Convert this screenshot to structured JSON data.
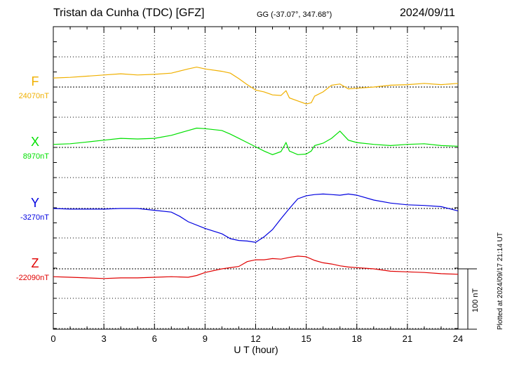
{
  "header": {
    "title": "Tristan da Cunha (TDC)  [GFZ]",
    "coords": "GG (-37.07°, 347.68°)",
    "date": "2024/09/11"
  },
  "plotted_note": "Plotted at 2024/09/17 21:14 UT",
  "colors": {
    "F": "#f0b000",
    "X": "#00e000",
    "Y": "#0000e0",
    "Z": "#e00000",
    "axis": "#000000",
    "grid": "#000000"
  },
  "chart_data": {
    "type": "line",
    "xlabel": "U T (hour)",
    "xlim": [
      0,
      24
    ],
    "xticks": [
      0,
      3,
      6,
      9,
      12,
      15,
      18,
      21,
      24
    ],
    "scale_bar": {
      "label": "100 nT",
      "value_nT": 100
    },
    "series": [
      {
        "name": "F",
        "baseline_label": "24070nT",
        "baseline_nT": 24070,
        "color": "#f0b000",
        "x": [
          0,
          1,
          2,
          3,
          4,
          5,
          6,
          7,
          8,
          8.5,
          9,
          10,
          10.5,
          11,
          11.5,
          12,
          12.5,
          13,
          13.5,
          13.8,
          14,
          14.5,
          15,
          15.3,
          15.5,
          16,
          16.5,
          17,
          17.5,
          18,
          19,
          20,
          21,
          22,
          23,
          24
        ],
        "values": [
          15,
          16,
          18,
          20,
          22,
          20,
          21,
          23,
          30,
          33,
          30,
          26,
          23,
          14,
          4,
          -5,
          -8,
          -13,
          -14,
          -6,
          -18,
          -23,
          -28,
          -26,
          -15,
          -8,
          3,
          5,
          -3,
          -2,
          0,
          3,
          4,
          6,
          4,
          6
        ]
      },
      {
        "name": "X",
        "baseline_label": "8970nT",
        "baseline_nT": 8970,
        "color": "#00e000",
        "x": [
          0,
          1,
          2,
          3,
          4,
          5,
          6,
          7,
          8,
          8.5,
          9,
          10,
          10.5,
          11,
          11.5,
          12,
          12.5,
          13,
          13.5,
          13.8,
          14,
          14.5,
          15,
          15.3,
          15.5,
          16,
          16.5,
          17,
          17.5,
          18,
          19,
          20,
          21,
          22,
          23,
          24
        ],
        "values": [
          5,
          6,
          9,
          12,
          15,
          14,
          15,
          20,
          28,
          32,
          31,
          28,
          22,
          15,
          8,
          1,
          -6,
          -12,
          -7,
          8,
          -6,
          -12,
          -11,
          -6,
          3,
          7,
          15,
          27,
          12,
          8,
          5,
          3,
          5,
          6,
          3,
          2
        ]
      },
      {
        "name": "Y",
        "baseline_label": "-3270nT",
        "baseline_nT": -3270,
        "color": "#0000e0",
        "x": [
          0,
          1,
          2,
          3,
          4,
          5,
          6,
          7,
          7.5,
          8,
          9,
          10,
          10.5,
          11,
          11.5,
          12,
          12.5,
          13,
          13.5,
          14,
          14.5,
          15,
          15.5,
          16,
          16.5,
          17,
          17.5,
          18,
          19,
          20,
          21,
          22,
          23,
          24
        ],
        "values": [
          0,
          -1,
          -1,
          -1,
          0,
          0,
          -3,
          -6,
          -13,
          -22,
          -33,
          -42,
          -50,
          -53,
          -54,
          -56,
          -47,
          -35,
          -17,
          0,
          16,
          21,
          23,
          24,
          23,
          22,
          24,
          22,
          14,
          9,
          6,
          5,
          3,
          -4
        ]
      },
      {
        "name": "Z",
        "baseline_label": "-22090nT",
        "baseline_nT": -22090,
        "color": "#e00000",
        "x": [
          0,
          1,
          2,
          3,
          4,
          5,
          6,
          7,
          8,
          8.5,
          9,
          10,
          11,
          11.5,
          12,
          12.5,
          13,
          13.5,
          14,
          14.5,
          15,
          15.5,
          16,
          16.5,
          17,
          17.5,
          18,
          19,
          20,
          21,
          22,
          23,
          24
        ],
        "values": [
          -13,
          -14,
          -15,
          -16,
          -15,
          -15,
          -14,
          -13,
          -14,
          -11,
          -6,
          0,
          4,
          12,
          15,
          15,
          17,
          16,
          19,
          21,
          20,
          14,
          10,
          8,
          5,
          3,
          2,
          0,
          -4,
          -5,
          -6,
          -8,
          -9
        ]
      }
    ]
  }
}
